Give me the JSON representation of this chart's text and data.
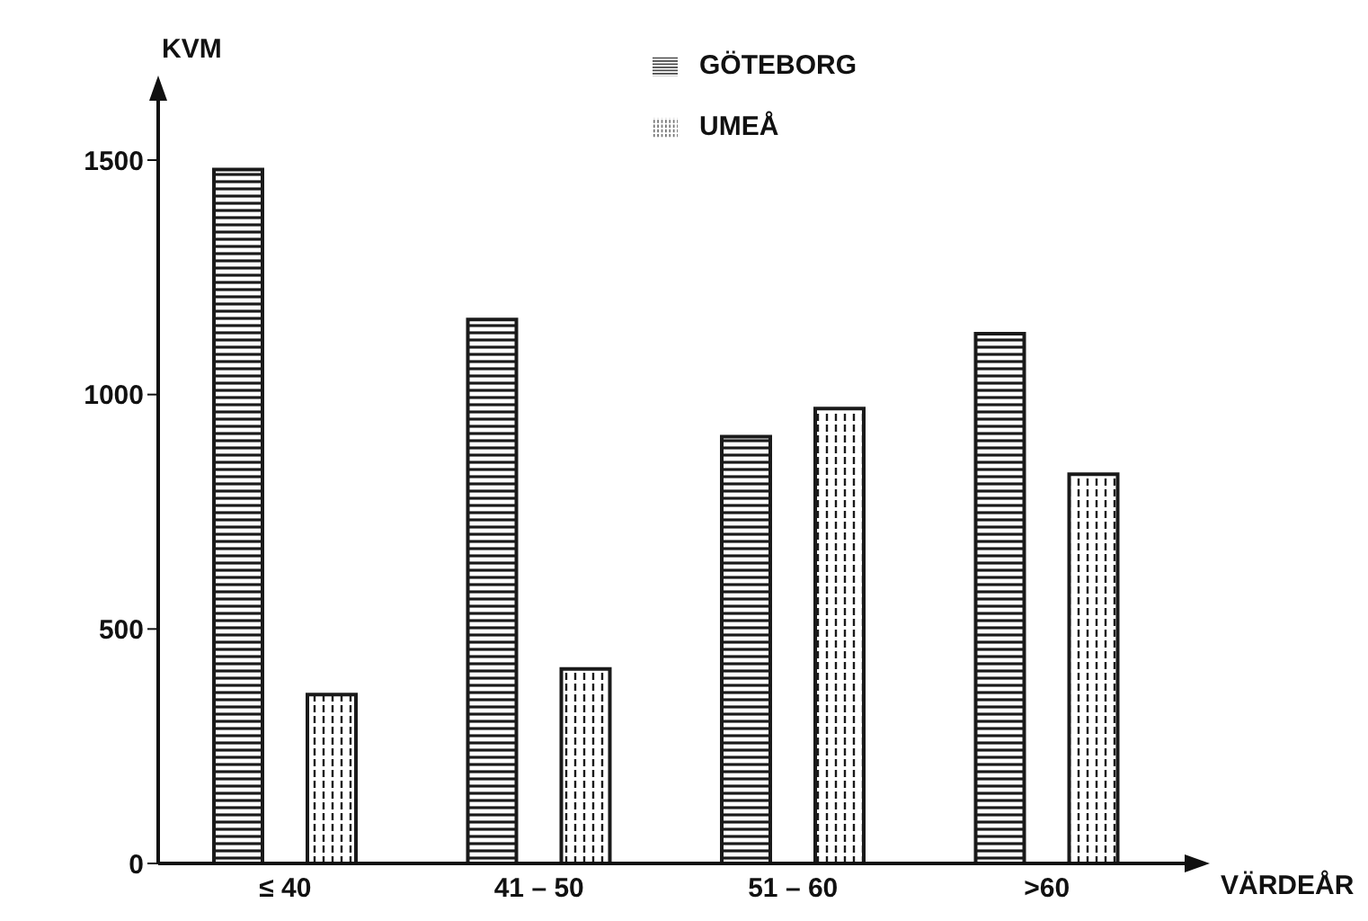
{
  "chart_data": {
    "type": "bar",
    "xlabel": "VÄRDEÅR",
    "ylabel": "KVM",
    "categories": [
      "≤ 40",
      "41 – 50",
      "51 – 60",
      ">60"
    ],
    "series": [
      {
        "name": "GÖTEBORG",
        "color": "#1a1a1a",
        "values": [
          1480,
          1160,
          910,
          1130
        ]
      },
      {
        "name": "UMEÅ",
        "color": "#1a1a1a",
        "values": [
          360,
          415,
          970,
          830
        ]
      }
    ],
    "ylim": [
      0,
      1500
    ],
    "yticks": [
      0,
      500,
      1000,
      1500
    ],
    "grid": false,
    "legend": "top"
  }
}
